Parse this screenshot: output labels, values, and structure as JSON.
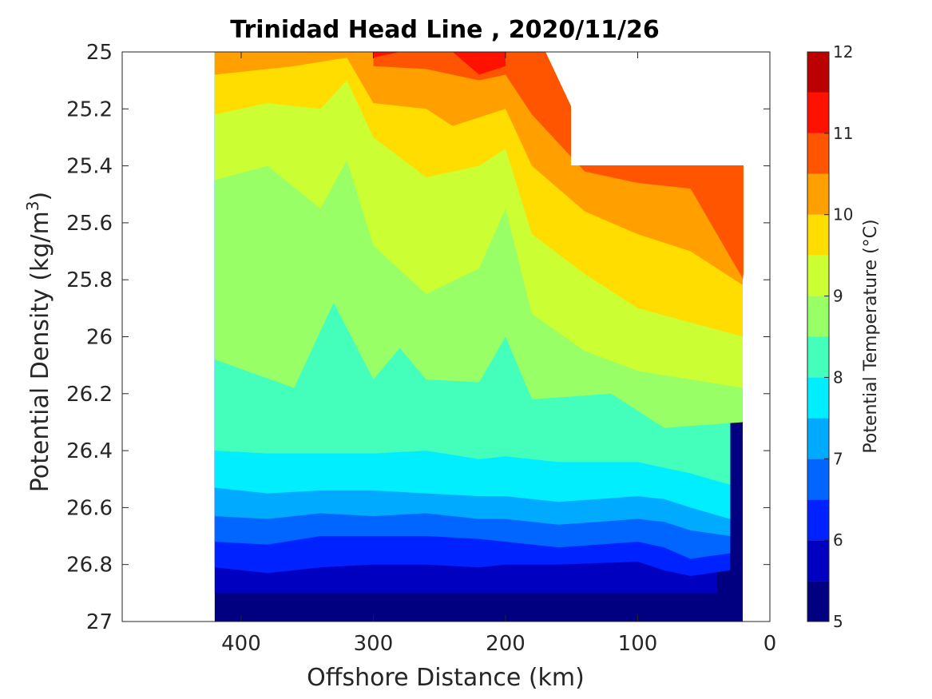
{
  "chart_data": {
    "type": "heatmap",
    "subtype": "filled-contour",
    "title": "Trinidad Head Line , 2020/11/26",
    "xlabel": "Offshore Distance (km)",
    "ylabel_main": "Potential Density (kg/m",
    "ylabel_sup": "3",
    "ylabel_end": ")",
    "x_reversed": true,
    "xlim": [
      0,
      490
    ],
    "ylim": [
      25,
      27
    ],
    "y_reversed": true,
    "x_ticks": [
      400,
      300,
      200,
      100,
      0
    ],
    "x_tick_labels": [
      "400",
      "300",
      "200",
      "100",
      "0"
    ],
    "y_ticks": [
      25,
      25.2,
      25.4,
      25.6,
      25.8,
      26,
      26.2,
      26.4,
      26.6,
      26.8,
      27
    ],
    "y_tick_labels": [
      "25",
      "25.2",
      "25.4",
      "25.6",
      "25.8",
      "26",
      "26.2",
      "26.4",
      "26.6",
      "26.8",
      "27"
    ],
    "colorbar": {
      "label": "Potential Temperature (°C)",
      "range": [
        5,
        12
      ],
      "ticks": [
        5,
        6,
        7,
        8,
        9,
        10,
        11,
        12
      ],
      "tick_labels": [
        "5",
        "6",
        "7",
        "8",
        "9",
        "10",
        "11",
        "12"
      ],
      "levels": [
        5,
        5.5,
        6,
        6.5,
        7,
        7.5,
        8,
        8.5,
        9,
        9.5,
        10,
        10.5,
        11,
        11.5,
        12
      ],
      "colors": [
        "#000080",
        "#0000c0",
        "#0022ff",
        "#0066ff",
        "#00aaff",
        "#00eeff",
        "#44ffbb",
        "#99ff66",
        "#ccff33",
        "#ffdd00",
        "#ff9f00",
        "#ff5500",
        "#ff1100",
        "#bb0000"
      ]
    },
    "data_extent": {
      "x_max_km": 420,
      "x_min_km": 20,
      "shallowest_density_offshore": 25.0,
      "deepest_density": 27.0
    },
    "series": [
      {
        "name": "",
        "level": 5.5,
        "x": [
          420,
          300,
          200,
          160,
          140,
          70,
          40
        ],
        "y": [
          26.9,
          26.9,
          26.9,
          26.9,
          26.9,
          26.9,
          26.9
        ]
      },
      {
        "name": "",
        "level": 6.0,
        "x": [
          420,
          380,
          340,
          300,
          260,
          220,
          200,
          160,
          100,
          80,
          60,
          30
        ],
        "y": [
          26.81,
          26.83,
          26.81,
          26.8,
          26.8,
          26.81,
          26.8,
          26.8,
          26.79,
          26.82,
          26.84,
          26.82
        ]
      },
      {
        "name": "",
        "level": 6.5,
        "x": [
          420,
          380,
          340,
          300,
          260,
          220,
          200,
          160,
          100,
          80,
          60,
          30
        ],
        "y": [
          26.72,
          26.73,
          26.7,
          26.7,
          26.7,
          26.71,
          26.72,
          26.74,
          26.72,
          26.74,
          26.78,
          26.76
        ]
      },
      {
        "name": "",
        "level": 7.0,
        "x": [
          420,
          380,
          340,
          300,
          260,
          220,
          200,
          160,
          100,
          80,
          60,
          30
        ],
        "y": [
          26.63,
          26.64,
          26.62,
          26.63,
          26.62,
          26.64,
          26.64,
          26.66,
          26.64,
          26.65,
          26.68,
          26.7
        ]
      },
      {
        "name": "",
        "level": 7.5,
        "x": [
          420,
          380,
          340,
          300,
          260,
          220,
          200,
          160,
          100,
          80,
          60,
          30
        ],
        "y": [
          26.53,
          26.55,
          26.54,
          26.54,
          26.55,
          26.56,
          26.56,
          26.58,
          26.56,
          26.57,
          26.6,
          26.64
        ]
      },
      {
        "name": "",
        "level": 8.0,
        "x": [
          420,
          380,
          340,
          300,
          260,
          220,
          200,
          160,
          100,
          80,
          60,
          30
        ],
        "y": [
          26.4,
          26.41,
          26.41,
          26.41,
          26.4,
          26.43,
          26.42,
          26.44,
          26.44,
          26.46,
          26.48,
          26.52
        ]
      },
      {
        "name": "",
        "level": 8.5,
        "x": [
          420,
          360,
          330,
          300,
          280,
          260,
          220,
          200,
          180,
          120,
          80,
          20
        ],
        "y": [
          26.08,
          26.18,
          25.88,
          26.15,
          26.04,
          26.15,
          26.16,
          26.0,
          26.22,
          26.2,
          26.32,
          26.3
        ]
      },
      {
        "name": "",
        "level": 9.0,
        "x": [
          420,
          380,
          340,
          320,
          300,
          260,
          220,
          200,
          180,
          140,
          100,
          20
        ],
        "y": [
          25.45,
          25.4,
          25.55,
          25.38,
          25.68,
          25.85,
          25.76,
          25.55,
          25.92,
          26.05,
          26.12,
          26.18
        ]
      },
      {
        "name": "",
        "level": 9.5,
        "x": [
          420,
          380,
          340,
          320,
          300,
          260,
          220,
          200,
          180,
          140,
          100,
          20
        ],
        "y": [
          25.22,
          25.18,
          25.2,
          25.1,
          25.3,
          25.44,
          25.4,
          25.34,
          25.64,
          25.78,
          25.9,
          26.0
        ]
      },
      {
        "name": "",
        "level": 10.0,
        "x": [
          420,
          360,
          320,
          300,
          260,
          240,
          200,
          180,
          140,
          100,
          60,
          20
        ],
        "y": [
          25.08,
          25.05,
          25.02,
          25.18,
          25.2,
          25.26,
          25.2,
          25.4,
          25.56,
          25.64,
          25.7,
          25.82
        ]
      },
      {
        "name": "",
        "level": 10.5,
        "x": [
          300,
          260,
          220,
          200,
          180,
          140,
          100,
          60,
          20
        ],
        "y": [
          25.05,
          25.06,
          25.1,
          25.08,
          25.22,
          25.42,
          25.46,
          25.48,
          25.8
        ]
      },
      {
        "name": "",
        "level": 11.0,
        "x": [
          300,
          280,
          240,
          220,
          200
        ],
        "y": [
          25.02,
          25.0,
          25.0,
          25.08,
          25.05
        ]
      }
    ]
  }
}
